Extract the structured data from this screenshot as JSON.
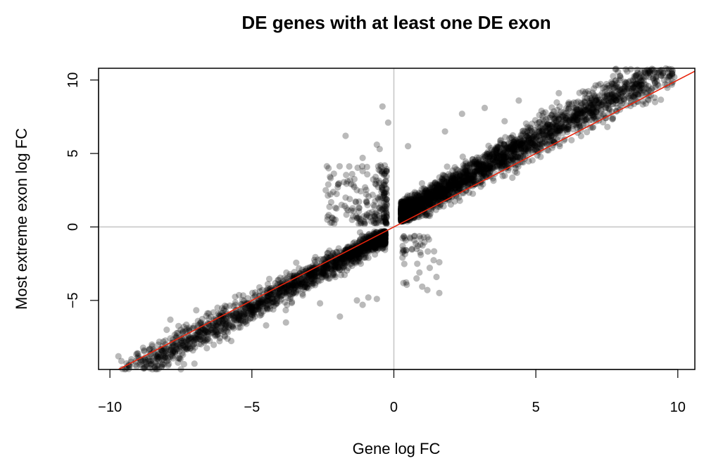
{
  "chart_data": {
    "type": "scatter",
    "title": "DE genes with at least one DE exon",
    "xlabel": "Gene log FC",
    "ylabel": "Most extreme exon log FC",
    "xlim": [
      -10.4,
      10.6
    ],
    "ylim": [
      -9.7,
      10.8
    ],
    "x_ticks": [
      -10,
      -5,
      0,
      5,
      10
    ],
    "y_ticks": [
      -5,
      0,
      5,
      10
    ],
    "x_tick_labels": [
      "−10",
      "−5",
      "0",
      "5",
      "10"
    ],
    "y_tick_labels": [
      "−5",
      "0",
      "5",
      "10"
    ],
    "grid": false,
    "reference_lines": [
      {
        "orientation": "vertical",
        "value": 0,
        "color": "#c8c8c8"
      },
      {
        "orientation": "horizontal",
        "value": 0,
        "color": "#c8c8c8"
      }
    ],
    "fit_line": {
      "slope": 1,
      "intercept": 0,
      "color": "#e8240c"
    },
    "point_color": "#000000",
    "point_opacity": 0.27,
    "clusters": [
      {
        "name": "positive-diagonal",
        "n": 2600,
        "x_range": [
          0.25,
          9.9
        ],
        "slope": 1.0,
        "offset": 0.9,
        "spread": 0.7
      },
      {
        "name": "negative-diagonal",
        "n": 1900,
        "x_range": [
          -9.6,
          -0.3
        ],
        "slope": 1.0,
        "offset": -0.4,
        "spread": 0.6
      },
      {
        "name": "upper-left-wing",
        "n": 220,
        "x_range": [
          -2.4,
          -0.25
        ],
        "y_range": [
          0.2,
          4.2
        ]
      },
      {
        "name": "lower-right-wing",
        "n": 45,
        "x_range": [
          0.3,
          1.6
        ],
        "y_range": [
          -4.5,
          -0.6
        ]
      }
    ],
    "outliers": [
      [
        -0.4,
        8.2
      ],
      [
        -0.2,
        7.1
      ],
      [
        -1.7,
        6.2
      ],
      [
        -0.6,
        5.6
      ],
      [
        -0.5,
        5.3
      ],
      [
        -2.3,
        4.0
      ],
      [
        -2.4,
        2.5
      ],
      [
        -1.1,
        4.7
      ],
      [
        0.5,
        5.5
      ],
      [
        2.4,
        7.7
      ],
      [
        3.2,
        8.1
      ],
      [
        4.4,
        8.6
      ],
      [
        5.2,
        7.9
      ],
      [
        1.8,
        6.5
      ],
      [
        3.9,
        7.2
      ],
      [
        9.0,
        10.2
      ],
      [
        9.8,
        10.3
      ],
      [
        8.1,
        8.6
      ],
      [
        9.2,
        8.5
      ],
      [
        7.4,
        8.5
      ],
      [
        -9.7,
        -8.8
      ],
      [
        -8.8,
        -8.4
      ],
      [
        -8.6,
        -8.3
      ],
      [
        -8.0,
        -7.0
      ],
      [
        -7.6,
        -7.2
      ],
      [
        -7.4,
        -6.8
      ],
      [
        -6.9,
        -6.4
      ],
      [
        -4.5,
        -6.7
      ],
      [
        -3.8,
        -6.5
      ],
      [
        -1.9,
        -6.1
      ],
      [
        -2.6,
        -5.2
      ],
      [
        -1.1,
        -5.3
      ],
      [
        -0.6,
        -4.9
      ],
      [
        1.6,
        -4.5
      ],
      [
        1.5,
        -3.4
      ],
      [
        1.6,
        -2.4
      ],
      [
        0.8,
        -3.5
      ],
      [
        0.9,
        -3.1
      ],
      [
        -0.9,
        -4.8
      ],
      [
        -1.3,
        -5.0
      ]
    ]
  }
}
